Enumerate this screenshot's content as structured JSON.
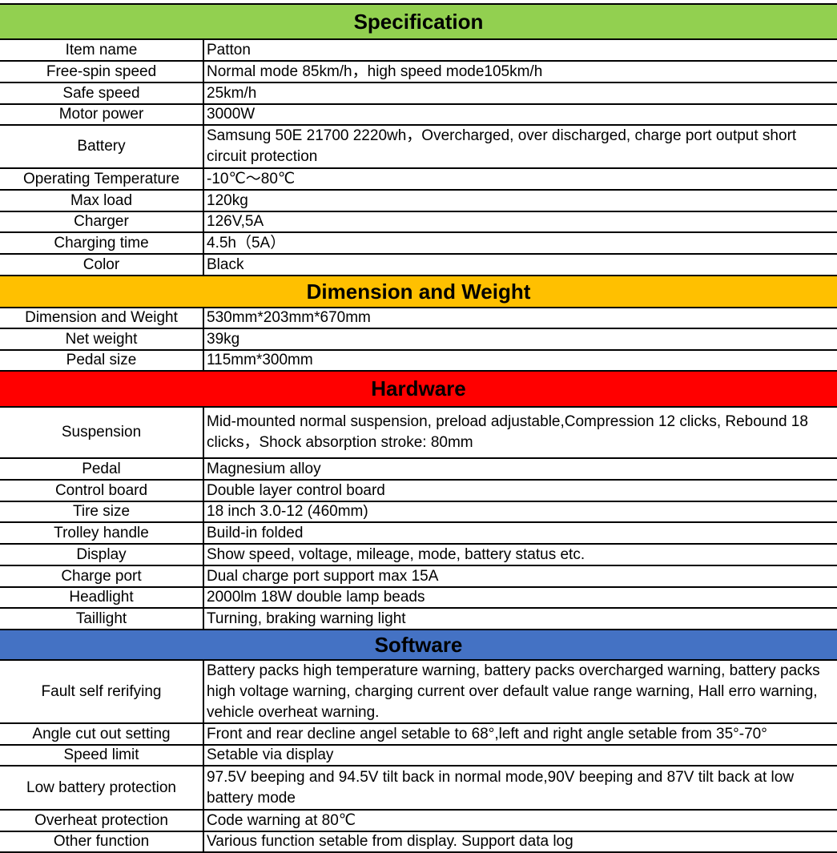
{
  "sections": [
    {
      "title": "Specification",
      "color": "#92d050",
      "rows": [
        {
          "label": "Item name",
          "value": "Patton"
        },
        {
          "label": "Free-spin speed",
          "value": "Normal mode  85km/h，high speed mode105km/h"
        },
        {
          "label": "Safe speed",
          "value": "25km/h"
        },
        {
          "label": "Motor power",
          "value": "3000W"
        },
        {
          "label": "Battery",
          "value": "Samsung 50E 21700 2220wh，Overcharged, over discharged, charge port output short circuit protection"
        },
        {
          "label": "Operating Temperature",
          "value": "-10℃～80℃"
        },
        {
          "label": "Max load",
          "value": "120kg"
        },
        {
          "label": "Charger",
          "value": "126V,5A"
        },
        {
          "label": "Charging time",
          "value": "4.5h（5A）"
        },
        {
          "label": "Color",
          "value": "Black"
        }
      ]
    },
    {
      "title": "Dimension and Weight",
      "color": "#ffc000",
      "rows": [
        {
          "label": "Dimension and Weight",
          "value": "530mm*203mm*670mm"
        },
        {
          "label": "Net weight",
          "value": "39kg"
        },
        {
          "label": "Pedal size",
          "value": "115mm*300mm"
        }
      ]
    },
    {
      "title": "Hardware",
      "color": "#ff0000",
      "rows": [
        {
          "label": "Suspension",
          "value": "Mid-mounted normal suspension,  preload adjustable,Compression 12 clicks, Rebound 18 clicks，Shock absorption stroke: 80mm"
        },
        {
          "label": "Pedal",
          "value": "Magnesium alloy"
        },
        {
          "label": "Control board",
          "value": "Double layer control board"
        },
        {
          "label": "Tire size",
          "value": "18 inch 3.0-12 (460mm)"
        },
        {
          "label": "Trolley handle",
          "value": "Build-in folded"
        },
        {
          "label": "Display",
          "value": "Show speed, voltage, mileage, mode, battery status etc."
        },
        {
          "label": "Charge port",
          "value": "Dual charge port support max 15A"
        },
        {
          "label": "Headlight",
          "value": "2000lm 18W double lamp beads"
        },
        {
          "label": "Taillight",
          "value": "Turning, braking warning light"
        }
      ]
    },
    {
      "title": "Software",
      "color": "#4472c4",
      "rows": [
        {
          "label": "Fault self rerifying",
          "value": "Battery packs high temperature warning, battery packs overcharged warning, battery packs high voltage warning, charging current over default value range warning, Hall erro warning, vehicle overheat warning."
        },
        {
          "label": "Angle cut out setting",
          "value": "Front and rear decline angel setable to 68°,left and right angle setable from 35°-70°"
        },
        {
          "label": "Speed limit",
          "value": "Setable via display"
        },
        {
          "label": "Low battery protection",
          "value": "97.5V beeping and 94.5V tilt back in normal mode,90V beeping and 87V tilt back at low battery mode"
        },
        {
          "label": "Overheat protection",
          "value": "Code warning at 80℃"
        },
        {
          "label": "Other function",
          "value": "Various function setable from display. Support data log"
        }
      ]
    }
  ]
}
